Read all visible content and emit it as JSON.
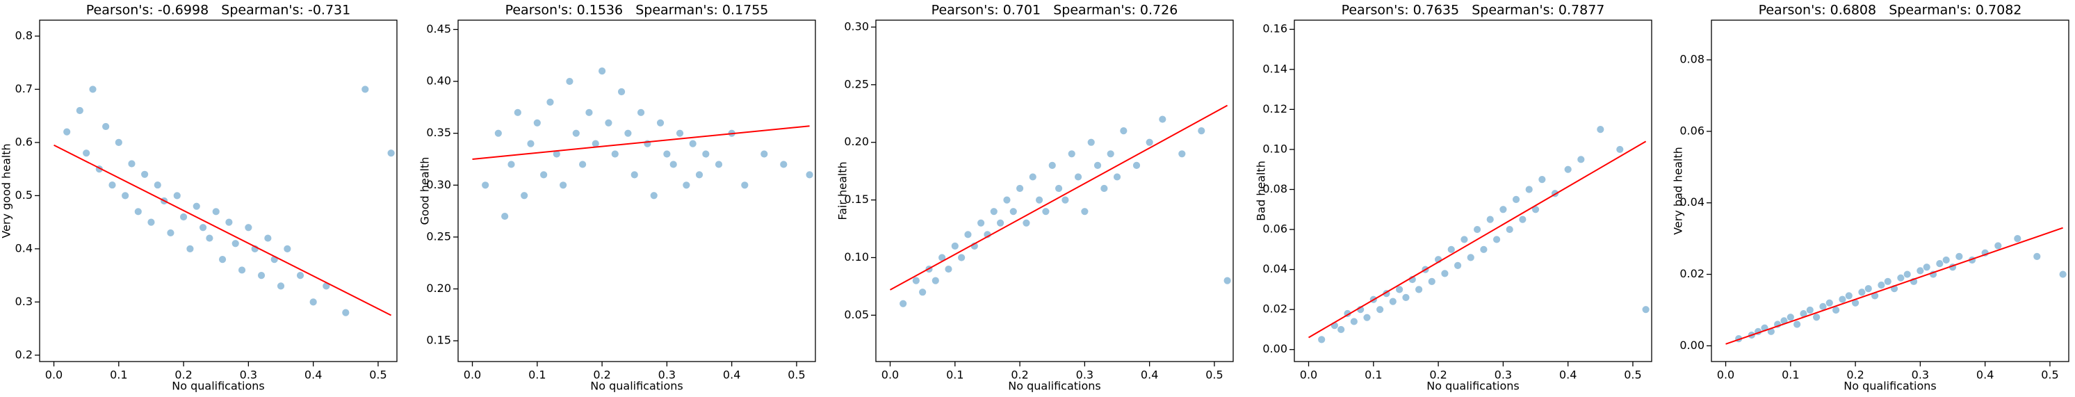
{
  "chart_data": [
    {
      "type": "scatter",
      "title": "Pearson's: -0.6998   Spearman's: -0.731",
      "x_label": "No qualifications",
      "y_label": "Very good health",
      "color": "#1f77b4",
      "fit_color": "#ff0000",
      "x": [
        0.02,
        0.04,
        0.05,
        0.06,
        0.07,
        0.08,
        0.09,
        0.1,
        0.11,
        0.12,
        0.13,
        0.14,
        0.15,
        0.16,
        0.17,
        0.18,
        0.19,
        0.2,
        0.21,
        0.22,
        0.23,
        0.24,
        0.25,
        0.26,
        0.27,
        0.28,
        0.29,
        0.3,
        0.31,
        0.32,
        0.33,
        0.34,
        0.35,
        0.36,
        0.38,
        0.4,
        0.42,
        0.45,
        0.48,
        0.52
      ],
      "y": [
        0.62,
        0.66,
        0.58,
        0.7,
        0.55,
        0.63,
        0.52,
        0.6,
        0.5,
        0.56,
        0.47,
        0.54,
        0.45,
        0.52,
        0.49,
        0.43,
        0.5,
        0.46,
        0.4,
        0.48,
        0.44,
        0.42,
        0.47,
        0.38,
        0.45,
        0.41,
        0.36,
        0.44,
        0.4,
        0.35,
        0.42,
        0.38,
        0.33,
        0.4,
        0.35,
        0.3,
        0.33,
        0.28,
        0.7,
        0.58
      ],
      "fit_x": [
        0,
        0.52
      ],
      "fit_y": [
        0.595,
        0.275
      ],
      "xlim": [
        -0.022,
        0.529
      ],
      "ylim": [
        0.188,
        0.83
      ],
      "xticks": [
        {
          "value": 0,
          "label": "0.0"
        },
        0.1,
        0.2,
        0.3,
        0.4,
        0.5
      ],
      "yticks": [
        0.2,
        0.3,
        0.4,
        0.5,
        0.6,
        0.7,
        0.8
      ]
    },
    {
      "type": "scatter",
      "title": "Pearson's: 0.1536   Spearman's: 0.1755",
      "x_label": "No qualifications",
      "y_label": "Good health",
      "color": "#1f77b4",
      "fit_color": "#ff0000",
      "x": [
        0.02,
        0.04,
        0.05,
        0.06,
        0.07,
        0.08,
        0.09,
        0.1,
        0.11,
        0.12,
        0.13,
        0.14,
        0.15,
        0.16,
        0.17,
        0.18,
        0.19,
        0.2,
        0.21,
        0.22,
        0.23,
        0.24,
        0.25,
        0.26,
        0.27,
        0.28,
        0.29,
        0.3,
        0.31,
        0.32,
        0.33,
        0.34,
        0.35,
        0.36,
        0.38,
        0.4,
        0.42,
        0.45,
        0.48,
        0.52
      ],
      "y": [
        0.3,
        0.35,
        0.27,
        0.32,
        0.37,
        0.29,
        0.34,
        0.36,
        0.31,
        0.38,
        0.33,
        0.3,
        0.4,
        0.35,
        0.32,
        0.37,
        0.34,
        0.41,
        0.36,
        0.33,
        0.39,
        0.35,
        0.31,
        0.37,
        0.34,
        0.29,
        0.36,
        0.33,
        0.32,
        0.35,
        0.3,
        0.34,
        0.31,
        0.33,
        0.32,
        0.35,
        0.3,
        0.33,
        0.32,
        0.31
      ],
      "fit_x": [
        0,
        0.52
      ],
      "fit_y": [
        0.325,
        0.357
      ],
      "xlim": [
        -0.022,
        0.529
      ],
      "ylim": [
        0.13,
        0.459
      ],
      "xticks": [
        {
          "value": 0,
          "label": "0.0"
        },
        0.1,
        0.2,
        0.3,
        0.4,
        0.5
      ],
      "yticks": [
        0.15,
        {
          "value": 0.2,
          "label": "0.20"
        },
        0.25,
        {
          "value": 0.3,
          "label": "0.30"
        },
        0.35,
        {
          "value": 0.4,
          "label": "0.40"
        },
        0.45
      ]
    },
    {
      "type": "scatter",
      "title": "Pearson's: 0.701   Spearman's: 0.726",
      "x_label": "No qualifications",
      "y_label": "Fair health",
      "color": "#1f77b4",
      "fit_color": "#ff0000",
      "x": [
        0.02,
        0.04,
        0.05,
        0.06,
        0.07,
        0.08,
        0.09,
        0.1,
        0.11,
        0.12,
        0.13,
        0.14,
        0.15,
        0.16,
        0.17,
        0.18,
        0.19,
        0.2,
        0.21,
        0.22,
        0.23,
        0.24,
        0.25,
        0.26,
        0.27,
        0.28,
        0.29,
        0.3,
        0.31,
        0.32,
        0.33,
        0.34,
        0.35,
        0.36,
        0.38,
        0.4,
        0.42,
        0.45,
        0.48,
        0.52
      ],
      "y": [
        0.06,
        0.08,
        0.07,
        0.09,
        0.08,
        0.1,
        0.09,
        0.11,
        0.1,
        0.12,
        0.11,
        0.13,
        0.12,
        0.14,
        0.13,
        0.15,
        0.14,
        0.16,
        0.13,
        0.17,
        0.15,
        0.14,
        0.18,
        0.16,
        0.15,
        0.19,
        0.17,
        0.14,
        0.2,
        0.18,
        0.16,
        0.19,
        0.17,
        0.21,
        0.18,
        0.2,
        0.22,
        0.19,
        0.21,
        0.08
      ],
      "fit_x": [
        0,
        0.52
      ],
      "fit_y": [
        0.072,
        0.232
      ],
      "xlim": [
        -0.022,
        0.529
      ],
      "ylim": [
        0.0098,
        0.306
      ],
      "xticks": [
        {
          "value": 0,
          "label": "0.0"
        },
        0.1,
        0.2,
        0.3,
        0.4,
        0.5
      ],
      "yticks": [
        0.05,
        {
          "value": 0.1,
          "label": "0.10"
        },
        0.15,
        {
          "value": 0.2,
          "label": "0.20"
        },
        0.25,
        {
          "value": 0.3,
          "label": "0.30"
        }
      ]
    },
    {
      "type": "scatter",
      "title": "Pearson's: 0.7635   Spearman's: 0.7877",
      "x_label": "No qualifications",
      "y_label": "Bad health",
      "color": "#1f77b4",
      "fit_color": "#ff0000",
      "x": [
        0.02,
        0.04,
        0.05,
        0.06,
        0.07,
        0.08,
        0.09,
        0.1,
        0.11,
        0.12,
        0.13,
        0.14,
        0.15,
        0.16,
        0.17,
        0.18,
        0.19,
        0.2,
        0.21,
        0.22,
        0.23,
        0.24,
        0.25,
        0.26,
        0.27,
        0.28,
        0.29,
        0.3,
        0.31,
        0.32,
        0.33,
        0.34,
        0.35,
        0.36,
        0.38,
        0.4,
        0.42,
        0.45,
        0.48,
        0.52
      ],
      "y": [
        0.005,
        0.012,
        0.01,
        0.018,
        0.014,
        0.02,
        0.016,
        0.025,
        0.02,
        0.028,
        0.024,
        0.03,
        0.026,
        0.035,
        0.03,
        0.04,
        0.034,
        0.045,
        0.038,
        0.05,
        0.042,
        0.055,
        0.046,
        0.06,
        0.05,
        0.065,
        0.055,
        0.07,
        0.06,
        0.075,
        0.065,
        0.08,
        0.07,
        0.085,
        0.078,
        0.09,
        0.095,
        0.11,
        0.1,
        0.02
      ],
      "fit_x": [
        0,
        0.52
      ],
      "fit_y": [
        0.006,
        0.104
      ],
      "xlim": [
        -0.022,
        0.529
      ],
      "ylim": [
        -0.006,
        0.1646
      ],
      "xticks": [
        {
          "value": 0,
          "label": "0.0"
        },
        0.1,
        0.2,
        0.3,
        0.4,
        0.5
      ],
      "yticks": [
        {
          "value": 0,
          "label": "0.00"
        },
        0.02,
        0.04,
        0.06,
        0.08,
        {
          "value": 0.1,
          "label": "0.10"
        },
        0.12,
        0.14,
        0.16
      ]
    },
    {
      "type": "scatter",
      "title": "Pearson's: 0.6808   Spearman's: 0.7082",
      "x_label": "No qualifications",
      "y_label": "Very bad health",
      "color": "#1f77b4",
      "fit_color": "#ff0000",
      "x": [
        0.02,
        0.04,
        0.05,
        0.06,
        0.07,
        0.08,
        0.09,
        0.1,
        0.11,
        0.12,
        0.13,
        0.14,
        0.15,
        0.16,
        0.17,
        0.18,
        0.19,
        0.2,
        0.21,
        0.22,
        0.23,
        0.24,
        0.25,
        0.26,
        0.27,
        0.28,
        0.29,
        0.3,
        0.31,
        0.32,
        0.33,
        0.34,
        0.35,
        0.36,
        0.38,
        0.4,
        0.42,
        0.45,
        0.48,
        0.52
      ],
      "y": [
        0.002,
        0.003,
        0.004,
        0.005,
        0.004,
        0.006,
        0.007,
        0.008,
        0.006,
        0.009,
        0.01,
        0.008,
        0.011,
        0.012,
        0.01,
        0.013,
        0.014,
        0.012,
        0.015,
        0.016,
        0.014,
        0.017,
        0.018,
        0.016,
        0.019,
        0.02,
        0.018,
        0.021,
        0.022,
        0.02,
        0.023,
        0.024,
        0.022,
        0.025,
        0.024,
        0.026,
        0.028,
        0.03,
        0.025,
        0.02
      ],
      "fit_x": [
        0,
        0.52
      ],
      "fit_y": [
        0.0005,
        0.033
      ],
      "xlim": [
        -0.022,
        0.529
      ],
      "ylim": [
        -0.0044,
        0.0911
      ],
      "xticks": [
        {
          "value": 0,
          "label": "0.0"
        },
        0.1,
        0.2,
        0.3,
        0.4,
        0.5
      ],
      "yticks": [
        {
          "value": 0,
          "label": "0.00"
        },
        0.02,
        0.04,
        0.06,
        0.08
      ]
    }
  ]
}
